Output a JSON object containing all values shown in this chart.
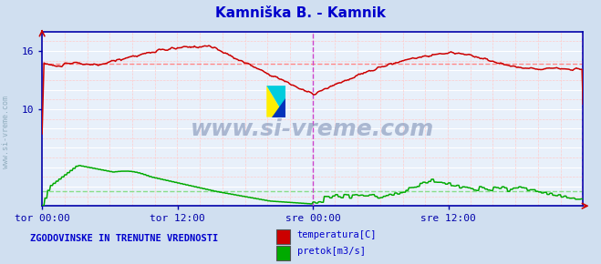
{
  "title": "Kamniška B. - Kamnik",
  "title_color": "#0000cc",
  "bg_color": "#d0dff0",
  "plot_bg_color": "#e8f0fa",
  "border_color": "#0000aa",
  "grid_major_color": "#ffffff",
  "grid_minor_color": "#ffcccc",
  "vline_color": "#cc44cc",
  "hline_temp_color": "#ff8888",
  "hline_flow_color": "#88dd88",
  "temp_color": "#cc0000",
  "flow_color": "#00aa00",
  "axis_label_color": "#0000aa",
  "tick_label_color": "#0000aa",
  "watermark_text": "www.si-vreme.com",
  "watermark_color": "#8899bb",
  "side_text": "www.si-vreme.com",
  "side_text_color": "#7799aa",
  "legend_title": "ZGODOVINSKE IN TRENUTNE VREDNOSTI",
  "legend_title_color": "#0000cc",
  "legend_items": [
    "temperatura[C]",
    "pretok[m3/s]"
  ],
  "legend_colors": [
    "#cc0000",
    "#00aa00"
  ],
  "ylim": [
    8,
    18
  ],
  "ytick_vals": [
    10,
    16
  ],
  "xlim": [
    0,
    575
  ],
  "xtick_positions": [
    0,
    144,
    288,
    432
  ],
  "xtick_labels": [
    "tor 00:00",
    "tor 12:00",
    "sre 00:00",
    "sre 12:00"
  ],
  "vline_x": [
    288,
    575
  ],
  "hline_temp_avg": 14.7,
  "hline_flow_avg": 1.5,
  "n_points": 576
}
